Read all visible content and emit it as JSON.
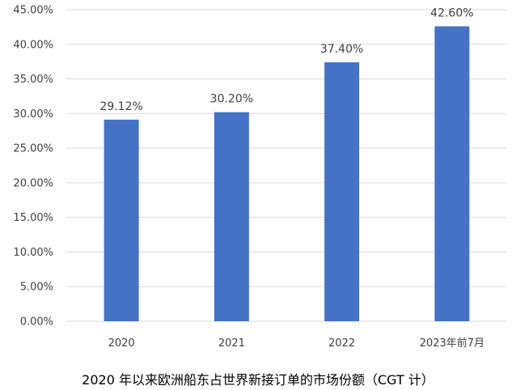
{
  "chart_data": {
    "type": "bar",
    "categories": [
      "2020",
      "2021",
      "2022",
      "2023年前7月"
    ],
    "values": [
      29.12,
      30.2,
      37.4,
      42.6
    ],
    "data_labels": [
      "29.12%",
      "30.20%",
      "37.40%",
      "42.60%"
    ],
    "title": "2020 年以来欧洲船东占世界新接订单的市场份额（CGT 计）",
    "xlabel": "",
    "ylabel": "",
    "ylim": [
      0,
      45
    ],
    "yticks": [
      0,
      5,
      10,
      15,
      20,
      25,
      30,
      35,
      40,
      45
    ],
    "ytick_labels": [
      "0.00%",
      "5.00%",
      "10.00%",
      "15.00%",
      "20.00%",
      "25.00%",
      "30.00%",
      "35.00%",
      "40.00%",
      "45.00%"
    ],
    "grid": true,
    "legend": "none",
    "bar_color": "#4472c4"
  }
}
